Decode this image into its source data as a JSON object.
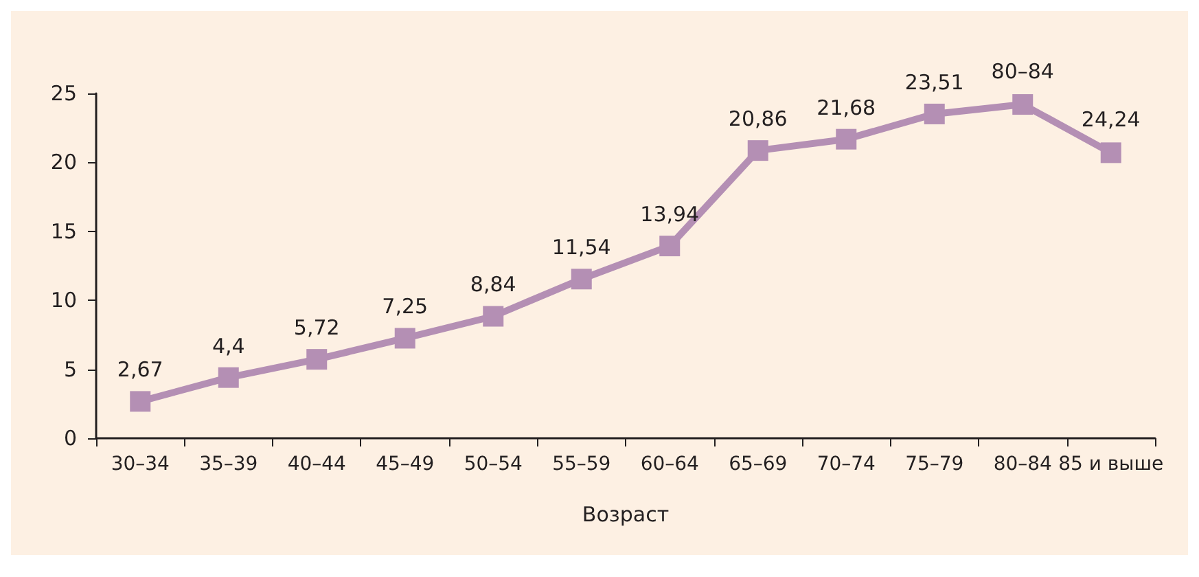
{
  "chart_data": {
    "type": "line",
    "xlabel": "Возраст",
    "categories": [
      "30–34",
      "35–39",
      "40–44",
      "45–49",
      "50–54",
      "55–59",
      "60–64",
      "65–69",
      "70–74",
      "75–79",
      "80–84",
      "85 и выше"
    ],
    "series": [
      {
        "color": "#b48fb4",
        "values": [
          2.67,
          4.4,
          5.72,
          7.25,
          8.84,
          11.54,
          13.94,
          20.86,
          21.68,
          23.51,
          24.2,
          20.7
        ],
        "value_labels": [
          "2,67",
          "4,4",
          "5,72",
          "7,25",
          "8,84",
          "11,54",
          "13,94",
          "20,86",
          "21,68",
          "23,51",
          null,
          null
        ]
      }
    ],
    "annotations": [
      {
        "text": "80–84",
        "x": "80–84",
        "y": 24.2
      },
      {
        "text": "24,24",
        "x": "85 и выше",
        "y": 20.7
      }
    ],
    "ylim": [
      0,
      25
    ],
    "yticks": [
      0,
      5,
      10,
      15,
      20,
      25
    ],
    "grid": false,
    "marker": "square",
    "line_style": "solid"
  }
}
